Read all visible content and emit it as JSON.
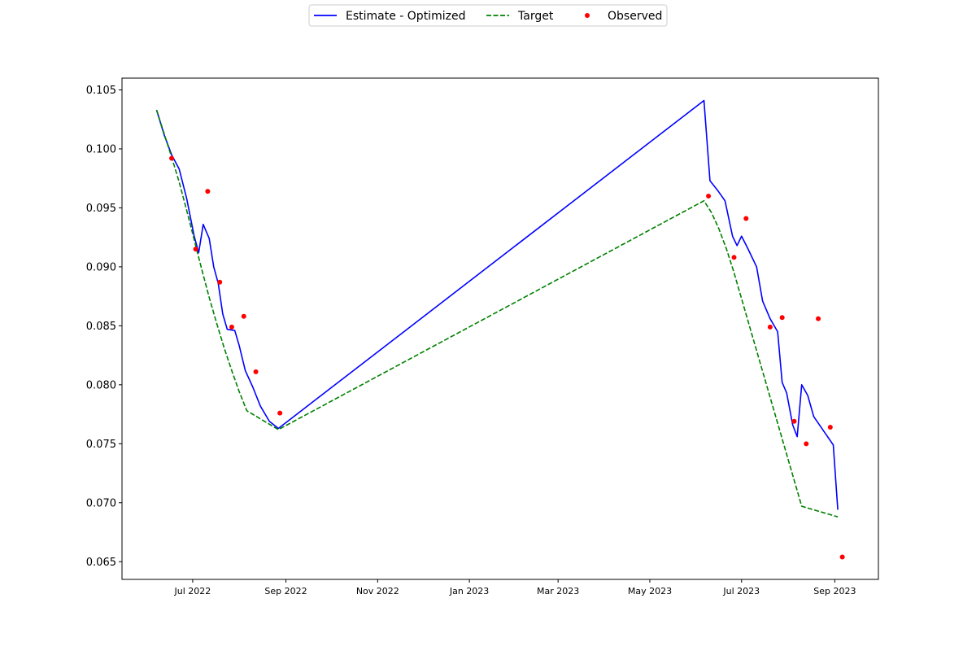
{
  "chart_data": {
    "type": "line",
    "title": "",
    "xlabel": "",
    "ylabel": "",
    "legend_position": "top-center",
    "grid": false,
    "xlim": [
      "2022-05-15",
      "2023-09-30"
    ],
    "ylim": [
      0.0635,
      0.106
    ],
    "x_ticks": [
      "2022-07-01",
      "2022-09-01",
      "2022-11-01",
      "2023-01-01",
      "2023-03-01",
      "2023-05-01",
      "2023-07-01",
      "2023-09-01"
    ],
    "x_tick_labels": [
      "Jul 2022",
      "Sep 2022",
      "Nov 2022",
      "Jan 2023",
      "Mar 2023",
      "May 2023",
      "Jul 2023",
      "Sep 2023"
    ],
    "y_ticks": [
      0.065,
      0.07,
      0.075,
      0.08,
      0.085,
      0.09,
      0.095,
      0.1,
      0.105
    ],
    "y_tick_labels": [
      "0.065",
      "0.070",
      "0.075",
      "0.080",
      "0.085",
      "0.090",
      "0.095",
      "0.100",
      "0.105"
    ],
    "series": [
      {
        "name": "Estimate - Optimized",
        "style": "solid",
        "color": "#0000ff",
        "points": [
          [
            "2022-06-07",
            0.1033
          ],
          [
            "2022-06-12",
            0.1012
          ],
          [
            "2022-06-17",
            0.0995
          ],
          [
            "2022-06-22",
            0.0983
          ],
          [
            "2022-06-27",
            0.0958
          ],
          [
            "2022-07-02",
            0.0926
          ],
          [
            "2022-07-05",
            0.0912
          ],
          [
            "2022-07-08",
            0.0936
          ],
          [
            "2022-07-12",
            0.0924
          ],
          [
            "2022-07-15",
            0.09
          ],
          [
            "2022-07-18",
            0.0886
          ],
          [
            "2022-07-21",
            0.086
          ],
          [
            "2022-07-24",
            0.0847
          ],
          [
            "2022-07-29",
            0.0846
          ],
          [
            "2022-08-01",
            0.0833
          ],
          [
            "2022-08-05",
            0.0812
          ],
          [
            "2022-08-10",
            0.0798
          ],
          [
            "2022-08-15",
            0.0782
          ],
          [
            "2022-08-21",
            0.0769
          ],
          [
            "2022-08-27",
            0.0763
          ],
          [
            "2023-06-06",
            0.1041
          ],
          [
            "2023-06-10",
            0.0973
          ],
          [
            "2023-06-15",
            0.0965
          ],
          [
            "2023-06-20",
            0.0956
          ],
          [
            "2023-06-25",
            0.0926
          ],
          [
            "2023-06-28",
            0.0918
          ],
          [
            "2023-07-01",
            0.0926
          ],
          [
            "2023-07-05",
            0.0916
          ],
          [
            "2023-07-11",
            0.09
          ],
          [
            "2023-07-15",
            0.0871
          ],
          [
            "2023-07-20",
            0.0856
          ],
          [
            "2023-07-25",
            0.0845
          ],
          [
            "2023-07-28",
            0.0802
          ],
          [
            "2023-07-31",
            0.0793
          ],
          [
            "2023-08-04",
            0.0766
          ],
          [
            "2023-08-07",
            0.0756
          ],
          [
            "2023-08-10",
            0.08
          ],
          [
            "2023-08-14",
            0.0791
          ],
          [
            "2023-08-18",
            0.0773
          ],
          [
            "2023-08-31",
            0.0749
          ],
          [
            "2023-09-03",
            0.0694
          ]
        ]
      },
      {
        "name": "Target",
        "style": "dashed",
        "color": "#008000",
        "points": [
          [
            "2022-06-07",
            0.1033
          ],
          [
            "2022-06-12",
            0.1013
          ],
          [
            "2022-06-17",
            0.0993
          ],
          [
            "2022-06-22",
            0.0972
          ],
          [
            "2022-06-27",
            0.0948
          ],
          [
            "2022-07-02",
            0.0923
          ],
          [
            "2022-07-07",
            0.0898
          ],
          [
            "2022-07-12",
            0.0874
          ],
          [
            "2022-07-17",
            0.0852
          ],
          [
            "2022-07-22",
            0.0831
          ],
          [
            "2022-07-27",
            0.0812
          ],
          [
            "2022-08-01",
            0.0794
          ],
          [
            "2022-08-06",
            0.0778
          ],
          [
            "2022-08-27",
            0.0762
          ],
          [
            "2023-06-06",
            0.0956
          ],
          [
            "2023-06-11",
            0.0946
          ],
          [
            "2023-06-16",
            0.0932
          ],
          [
            "2023-06-21",
            0.0915
          ],
          [
            "2023-06-26",
            0.0895
          ],
          [
            "2023-07-01",
            0.0873
          ],
          [
            "2023-07-06",
            0.0851
          ],
          [
            "2023-07-11",
            0.0829
          ],
          [
            "2023-07-16",
            0.0807
          ],
          [
            "2023-07-21",
            0.0785
          ],
          [
            "2023-07-26",
            0.0763
          ],
          [
            "2023-07-31",
            0.0741
          ],
          [
            "2023-08-05",
            0.0719
          ],
          [
            "2023-08-10",
            0.0697
          ],
          [
            "2023-09-03",
            0.0688
          ]
        ]
      },
      {
        "name": "Observed",
        "style": "scatter",
        "color": "#ff0000",
        "points": [
          [
            "2022-06-17",
            0.0992
          ],
          [
            "2022-07-03",
            0.0915
          ],
          [
            "2022-07-11",
            0.0964
          ],
          [
            "2022-07-19",
            0.0887
          ],
          [
            "2022-07-27",
            0.0849
          ],
          [
            "2022-08-04",
            0.0858
          ],
          [
            "2022-08-12",
            0.0811
          ],
          [
            "2022-08-28",
            0.0776
          ],
          [
            "2023-06-09",
            0.096
          ],
          [
            "2023-06-26",
            0.0908
          ],
          [
            "2023-07-04",
            0.0941
          ],
          [
            "2023-07-20",
            0.0849
          ],
          [
            "2023-07-28",
            0.0857
          ],
          [
            "2023-08-05",
            0.0769
          ],
          [
            "2023-08-13",
            0.075
          ],
          [
            "2023-08-21",
            0.0856
          ],
          [
            "2023-08-29",
            0.0764
          ],
          [
            "2023-09-06",
            0.0654
          ]
        ]
      }
    ]
  },
  "legend": {
    "items": [
      {
        "label": "Estimate - Optimized",
        "color": "#0000ff",
        "kind": "solid-line"
      },
      {
        "label": "Target",
        "color": "#008000",
        "kind": "dashed-line"
      },
      {
        "label": "Observed",
        "color": "#ff0000",
        "kind": "marker"
      }
    ]
  }
}
